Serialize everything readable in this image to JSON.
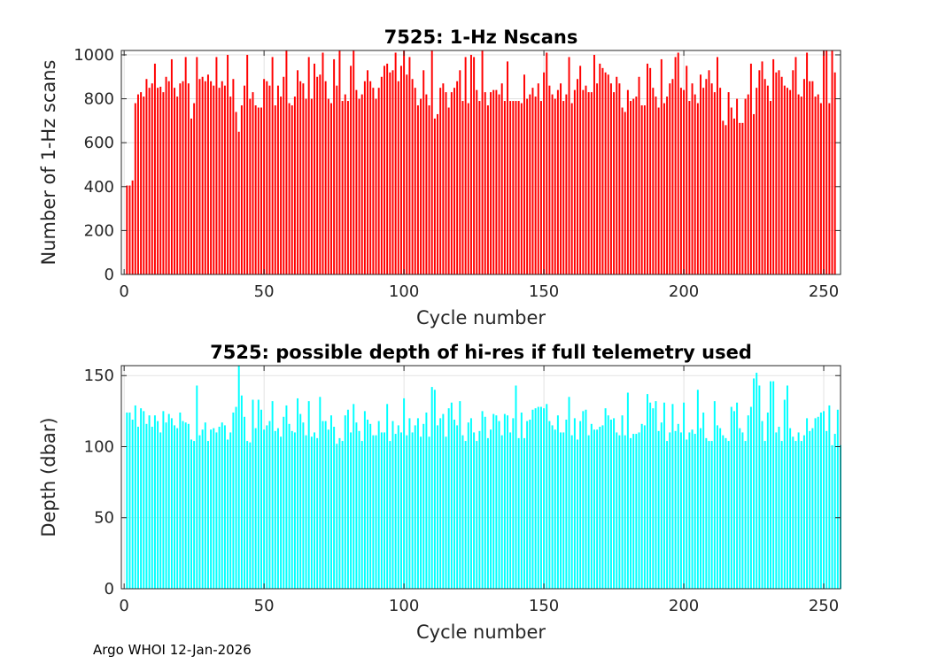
{
  "footer": {
    "label": "Argo WHOI 12-Jan-2026"
  },
  "chart_data": [
    {
      "type": "bar",
      "title": "7525: 1-Hz Nscans",
      "xlabel": "Cycle number",
      "ylabel": "Number of 1-Hz scans",
      "xlim": [
        -1,
        256
      ],
      "ylim": [
        0,
        1020
      ],
      "xticks": [
        0,
        50,
        100,
        150,
        200,
        250
      ],
      "yticks": [
        0,
        200,
        400,
        600,
        800,
        1000
      ],
      "grid": true,
      "color": "#ff0000",
      "series": [
        {
          "name": "Nscans",
          "x_start": 1,
          "values": [
            405,
            405,
            428,
            780,
            820,
            830,
            810,
            890,
            850,
            870,
            960,
            850,
            855,
            830,
            900,
            880,
            980,
            850,
            810,
            870,
            880,
            990,
            870,
            710,
            780,
            990,
            890,
            900,
            880,
            910,
            880,
            860,
            990,
            850,
            880,
            860,
            1000,
            810,
            890,
            740,
            650,
            770,
            860,
            1000,
            800,
            830,
            770,
            760,
            760,
            890,
            880,
            860,
            990,
            770,
            860,
            810,
            900,
            1020,
            780,
            770,
            810,
            930,
            880,
            870,
            800,
            990,
            800,
            960,
            900,
            910,
            1010,
            880,
            800,
            780,
            980,
            860,
            1020,
            790,
            820,
            790,
            950,
            1020,
            840,
            800,
            820,
            880,
            930,
            880,
            850,
            800,
            850,
            900,
            950,
            960,
            920,
            930,
            1010,
            880,
            950,
            1020,
            910,
            990,
            890,
            850,
            770,
            800,
            930,
            820,
            770,
            1020,
            710,
            730,
            850,
            870,
            830,
            760,
            830,
            850,
            880,
            930,
            790,
            990,
            780,
            1000,
            990,
            840,
            790,
            1030,
            830,
            770,
            830,
            840,
            840,
            820,
            870,
            790,
            970,
            790,
            790,
            790,
            790,
            780,
            910,
            800,
            820,
            850,
            810,
            870,
            790,
            920,
            1010,
            860,
            820,
            800,
            840,
            870,
            790,
            820,
            990,
            780,
            840,
            890,
            950,
            840,
            860,
            830,
            830,
            1000,
            870,
            960,
            940,
            920,
            910,
            870,
            830,
            900,
            870,
            760,
            740,
            840,
            790,
            800,
            810,
            900,
            770,
            770,
            960,
            940,
            850,
            810,
            760,
            980,
            780,
            810,
            870,
            890,
            990,
            1010,
            850,
            840,
            950,
            790,
            870,
            820,
            780,
            910,
            850,
            890,
            930,
            870,
            830,
            990,
            850,
            700,
            680,
            830,
            760,
            710,
            800,
            690,
            690,
            800,
            820,
            960,
            730,
            850,
            930,
            970,
            890,
            860,
            790,
            980,
            920,
            930,
            900,
            860,
            850,
            840,
            930,
            990,
            820,
            810,
            890,
            1010,
            880,
            880,
            810,
            820,
            780,
            1020,
            1020,
            780,
            1020,
            920
          ]
        }
      ]
    },
    {
      "type": "bar",
      "title": "7525: possible depth of hi-res if full telemetry used",
      "xlabel": "Cycle number",
      "ylabel": "Depth (dbar)",
      "xlim": [
        -1,
        256
      ],
      "ylim": [
        0,
        157
      ],
      "xticks": [
        0,
        50,
        100,
        150,
        200,
        250
      ],
      "yticks": [
        0,
        50,
        100,
        150
      ],
      "grid": true,
      "color": "#00ffff",
      "series": [
        {
          "name": "Depth",
          "x_start": 1,
          "values": [
            124,
            124,
            119,
            129,
            114,
            127,
            125,
            116,
            122,
            114,
            122,
            118,
            110,
            125,
            117,
            123,
            120,
            115,
            113,
            124,
            118,
            117,
            116,
            105,
            104,
            143,
            108,
            112,
            117,
            104,
            112,
            113,
            110,
            114,
            117,
            115,
            105,
            110,
            124,
            128,
            158,
            136,
            121,
            104,
            103,
            133,
            113,
            133,
            126,
            112,
            115,
            118,
            132,
            111,
            113,
            107,
            121,
            129,
            116,
            111,
            110,
            134,
            123,
            117,
            108,
            132,
            107,
            110,
            106,
            135,
            118,
            118,
            112,
            122,
            114,
            102,
            106,
            104,
            122,
            126,
            110,
            130,
            117,
            111,
            104,
            125,
            119,
            116,
            108,
            108,
            118,
            110,
            110,
            130,
            104,
            118,
            109,
            115,
            110,
            134,
            108,
            120,
            110,
            115,
            120,
            107,
            116,
            124,
            107,
            142,
            140,
            115,
            120,
            123,
            107,
            127,
            131,
            119,
            115,
            132,
            108,
            104,
            117,
            120,
            110,
            104,
            111,
            125,
            121,
            106,
            112,
            123,
            122,
            118,
            108,
            123,
            122,
            110,
            120,
            143,
            106,
            124,
            106,
            118,
            119,
            126,
            127,
            128,
            128,
            127,
            130,
            118,
            115,
            112,
            122,
            110,
            110,
            119,
            135,
            108,
            120,
            105,
            118,
            125,
            126,
            108,
            116,
            112,
            112,
            114,
            115,
            127,
            122,
            119,
            120,
            110,
            108,
            122,
            108,
            138,
            106,
            109,
            109,
            110,
            116,
            115,
            137,
            131,
            127,
            132,
            111,
            117,
            131,
            104,
            110,
            130,
            111,
            116,
            110,
            131,
            105,
            110,
            112,
            109,
            140,
            113,
            124,
            106,
            104,
            104,
            132,
            115,
            113,
            108,
            106,
            104,
            128,
            125,
            131,
            113,
            110,
            104,
            122,
            128,
            148,
            152,
            143,
            118,
            104,
            124,
            146,
            146,
            110,
            114,
            104,
            133,
            143,
            113,
            107,
            104,
            110,
            104,
            108,
            120,
            111,
            113,
            120,
            121,
            124,
            125,
            111,
            129,
            101,
            109,
            126,
            101
          ]
        }
      ]
    }
  ]
}
